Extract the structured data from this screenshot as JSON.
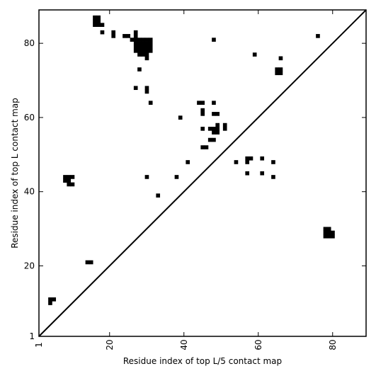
{
  "chart_data": {
    "type": "heatmap",
    "xlabel": "Residue index of top L/5 contact map",
    "ylabel": "Residue index of top L contact map",
    "xlim": [
      1,
      89
    ],
    "ylim": [
      1,
      89
    ],
    "x_ticks": [
      1,
      20,
      40,
      60,
      80
    ],
    "y_ticks": [
      1,
      20,
      40,
      60,
      80
    ],
    "x_tick_labels": [
      "1",
      "20",
      "40",
      "60",
      "80"
    ],
    "y_tick_labels": [
      "1",
      "20",
      "40",
      "60",
      "80"
    ],
    "x_tick_rotation_deg": -90,
    "grid": false,
    "diagonal_line": true,
    "cell_color": "#000000",
    "background_color": "#ffffff",
    "contacts": [
      [
        16,
        87
      ],
      [
        17,
        87
      ],
      [
        16,
        86
      ],
      [
        17,
        86
      ],
      [
        16,
        85
      ],
      [
        17,
        85
      ],
      [
        18,
        85
      ],
      [
        18,
        83
      ],
      [
        21,
        83
      ],
      [
        21,
        82
      ],
      [
        24,
        82
      ],
      [
        25,
        82
      ],
      [
        27,
        83
      ],
      [
        26,
        81
      ],
      [
        27,
        81
      ],
      [
        27,
        82
      ],
      [
        27,
        80
      ],
      [
        27,
        79
      ],
      [
        27,
        78
      ],
      [
        28,
        81
      ],
      [
        29,
        81
      ],
      [
        30,
        81
      ],
      [
        31,
        81
      ],
      [
        28,
        80
      ],
      [
        29,
        80
      ],
      [
        30,
        80
      ],
      [
        31,
        80
      ],
      [
        28,
        79
      ],
      [
        29,
        79
      ],
      [
        30,
        79
      ],
      [
        31,
        79
      ],
      [
        28,
        78
      ],
      [
        29,
        78
      ],
      [
        30,
        78
      ],
      [
        31,
        78
      ],
      [
        28,
        77
      ],
      [
        29,
        77
      ],
      [
        30,
        77
      ],
      [
        30,
        76
      ],
      [
        28,
        73
      ],
      [
        27,
        68
      ],
      [
        30,
        68
      ],
      [
        30,
        67
      ],
      [
        31,
        64
      ],
      [
        48,
        81
      ],
      [
        59,
        77
      ],
      [
        76,
        82
      ],
      [
        66,
        76
      ],
      [
        65,
        73
      ],
      [
        66,
        73
      ],
      [
        65,
        72
      ],
      [
        66,
        72
      ],
      [
        44,
        64
      ],
      [
        45,
        64
      ],
      [
        48,
        64
      ],
      [
        45,
        62
      ],
      [
        45,
        61
      ],
      [
        48,
        61
      ],
      [
        49,
        61
      ],
      [
        39,
        60
      ],
      [
        45,
        57
      ],
      [
        47,
        57
      ],
      [
        48,
        57
      ],
      [
        49,
        57
      ],
      [
        49,
        58
      ],
      [
        51,
        58
      ],
      [
        51,
        57
      ],
      [
        48,
        56
      ],
      [
        49,
        56
      ],
      [
        47,
        54
      ],
      [
        48,
        54
      ],
      [
        45,
        52
      ],
      [
        46,
        52
      ],
      [
        41,
        48
      ],
      [
        54,
        48
      ],
      [
        57,
        48
      ],
      [
        57,
        49
      ],
      [
        58,
        49
      ],
      [
        61,
        49
      ],
      [
        64,
        48
      ],
      [
        57,
        45
      ],
      [
        61,
        45
      ],
      [
        64,
        44
      ],
      [
        30,
        44
      ],
      [
        38,
        44
      ],
      [
        33,
        39
      ],
      [
        8,
        44
      ],
      [
        9,
        44
      ],
      [
        10,
        44
      ],
      [
        8,
        43
      ],
      [
        9,
        43
      ],
      [
        9,
        42
      ],
      [
        10,
        42
      ],
      [
        14,
        21
      ],
      [
        15,
        21
      ],
      [
        4,
        11
      ],
      [
        5,
        11
      ],
      [
        4,
        10
      ],
      [
        78,
        30
      ],
      [
        79,
        30
      ],
      [
        78,
        29
      ],
      [
        79,
        29
      ],
      [
        80,
        29
      ],
      [
        78,
        28
      ],
      [
        79,
        28
      ],
      [
        80,
        28
      ]
    ]
  }
}
